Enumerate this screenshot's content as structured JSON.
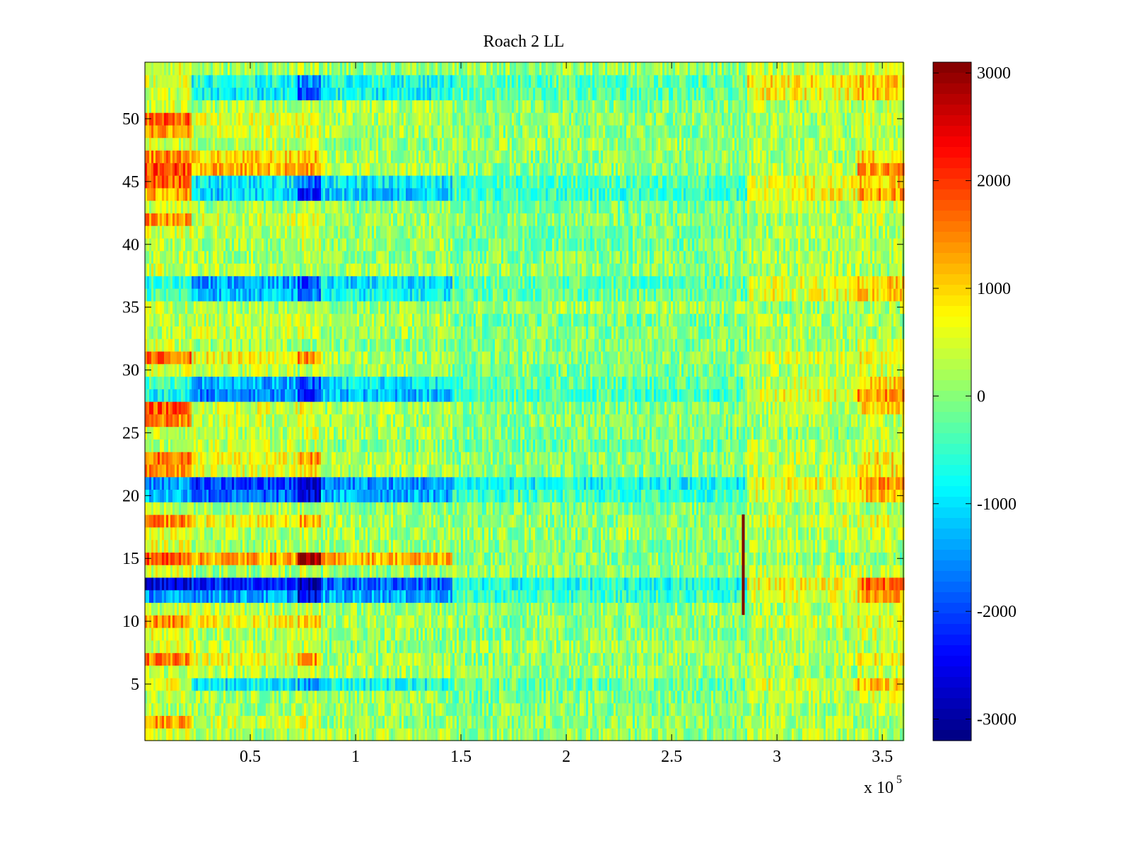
{
  "chart_data": {
    "type": "heatmap",
    "title": "Roach 2 LL",
    "xlabel": "",
    "ylabel": "",
    "x_multiplier_label": "x 10",
    "x_multiplier_exponent": "5",
    "xlim": [
      0,
      3.6
    ],
    "ylim": [
      0.5,
      54.5
    ],
    "rows": 54,
    "x_ticks": [
      0.5,
      1,
      1.5,
      2,
      2.5,
      3,
      3.5
    ],
    "x_tick_labels": [
      "0.5",
      "1",
      "1.5",
      "2",
      "2.5",
      "3",
      "3.5"
    ],
    "y_ticks": [
      5,
      10,
      15,
      20,
      25,
      30,
      35,
      40,
      45,
      50
    ],
    "y_tick_labels": [
      "5",
      "10",
      "15",
      "20",
      "25",
      "30",
      "35",
      "40",
      "45",
      "50"
    ],
    "colorbar": {
      "colormap": "jet",
      "clim": [
        -3200,
        3100
      ],
      "ticks": [
        3000,
        2000,
        1000,
        0,
        -1000,
        -2000,
        -3000
      ],
      "tick_labels": [
        "3000",
        "2000",
        "1000",
        "0",
        "-1000",
        "-2000",
        "-3000"
      ]
    },
    "grid": false,
    "segment_breaks_x": [
      0,
      0.22,
      0.72,
      0.83,
      1.45,
      2.85,
      3.38,
      3.6
    ],
    "row_values": {
      "15": [
        1800,
        1300,
        3000,
        1200,
        0,
        0,
        0
      ],
      "13": [
        -2600,
        -2200,
        -2900,
        -1800,
        -700,
        700,
        1700
      ],
      "12": [
        -1500,
        -1400,
        -2500,
        -1300,
        -500,
        600,
        1300
      ],
      "21": [
        -1500,
        -2100,
        -2800,
        -1500,
        -800,
        700,
        1300
      ],
      "20": [
        -1200,
        -1800,
        -2600,
        -1300,
        -500,
        500,
        1100
      ],
      "28": [
        -800,
        -1600,
        -2200,
        -1200,
        -400,
        600,
        1400
      ],
      "29": [
        -500,
        -1300,
        -1900,
        -900,
        -300,
        400,
        900
      ],
      "37": [
        -600,
        -1400,
        -2000,
        -1000,
        -300,
        500,
        1000
      ],
      "36": [
        -400,
        -1200,
        -1700,
        -800,
        -200,
        600,
        900
      ],
      "45": [
        1700,
        -900,
        -1800,
        -900,
        -400,
        600,
        1000
      ],
      "44": [
        1200,
        -1100,
        -2300,
        -1100,
        -500,
        700,
        1300
      ],
      "52": [
        400,
        -900,
        -2100,
        -800,
        -300,
        700,
        1100
      ],
      "53": [
        500,
        -700,
        -1600,
        -700,
        -300,
        800,
        1000
      ],
      "46": [
        1900,
        1200,
        1300,
        300,
        0,
        300,
        1300
      ],
      "47": [
        1500,
        900,
        1100,
        200,
        0,
        200,
        900
      ],
      "50": [
        1700,
        500,
        600,
        200,
        0,
        200,
        300
      ],
      "49": [
        1400,
        400,
        500,
        200,
        0,
        200,
        300
      ],
      "42": [
        1400,
        400,
        500,
        100,
        0,
        200,
        300
      ],
      "31": [
        1600,
        700,
        1400,
        200,
        0,
        500,
        800
      ],
      "27": [
        1800,
        500,
        600,
        200,
        0,
        300,
        900
      ],
      "26": [
        1500,
        400,
        500,
        200,
        0,
        200,
        300
      ],
      "23": [
        1600,
        600,
        1300,
        200,
        0,
        300,
        800
      ],
      "22": [
        1400,
        500,
        900,
        200,
        0,
        300,
        800
      ],
      "18": [
        1500,
        700,
        1200,
        200,
        0,
        400,
        600
      ],
      "10": [
        1400,
        700,
        1100,
        200,
        0,
        400,
        500
      ],
      "7": [
        1500,
        600,
        1300,
        200,
        0,
        300,
        700
      ],
      "5": [
        600,
        -900,
        -1500,
        -700,
        -200,
        500,
        1000
      ],
      "2": [
        1400,
        400,
        500,
        100,
        0,
        200,
        200
      ]
    },
    "spike": {
      "x": 2.84,
      "y_range": [
        10.5,
        18.5
      ],
      "value": 3100
    }
  }
}
